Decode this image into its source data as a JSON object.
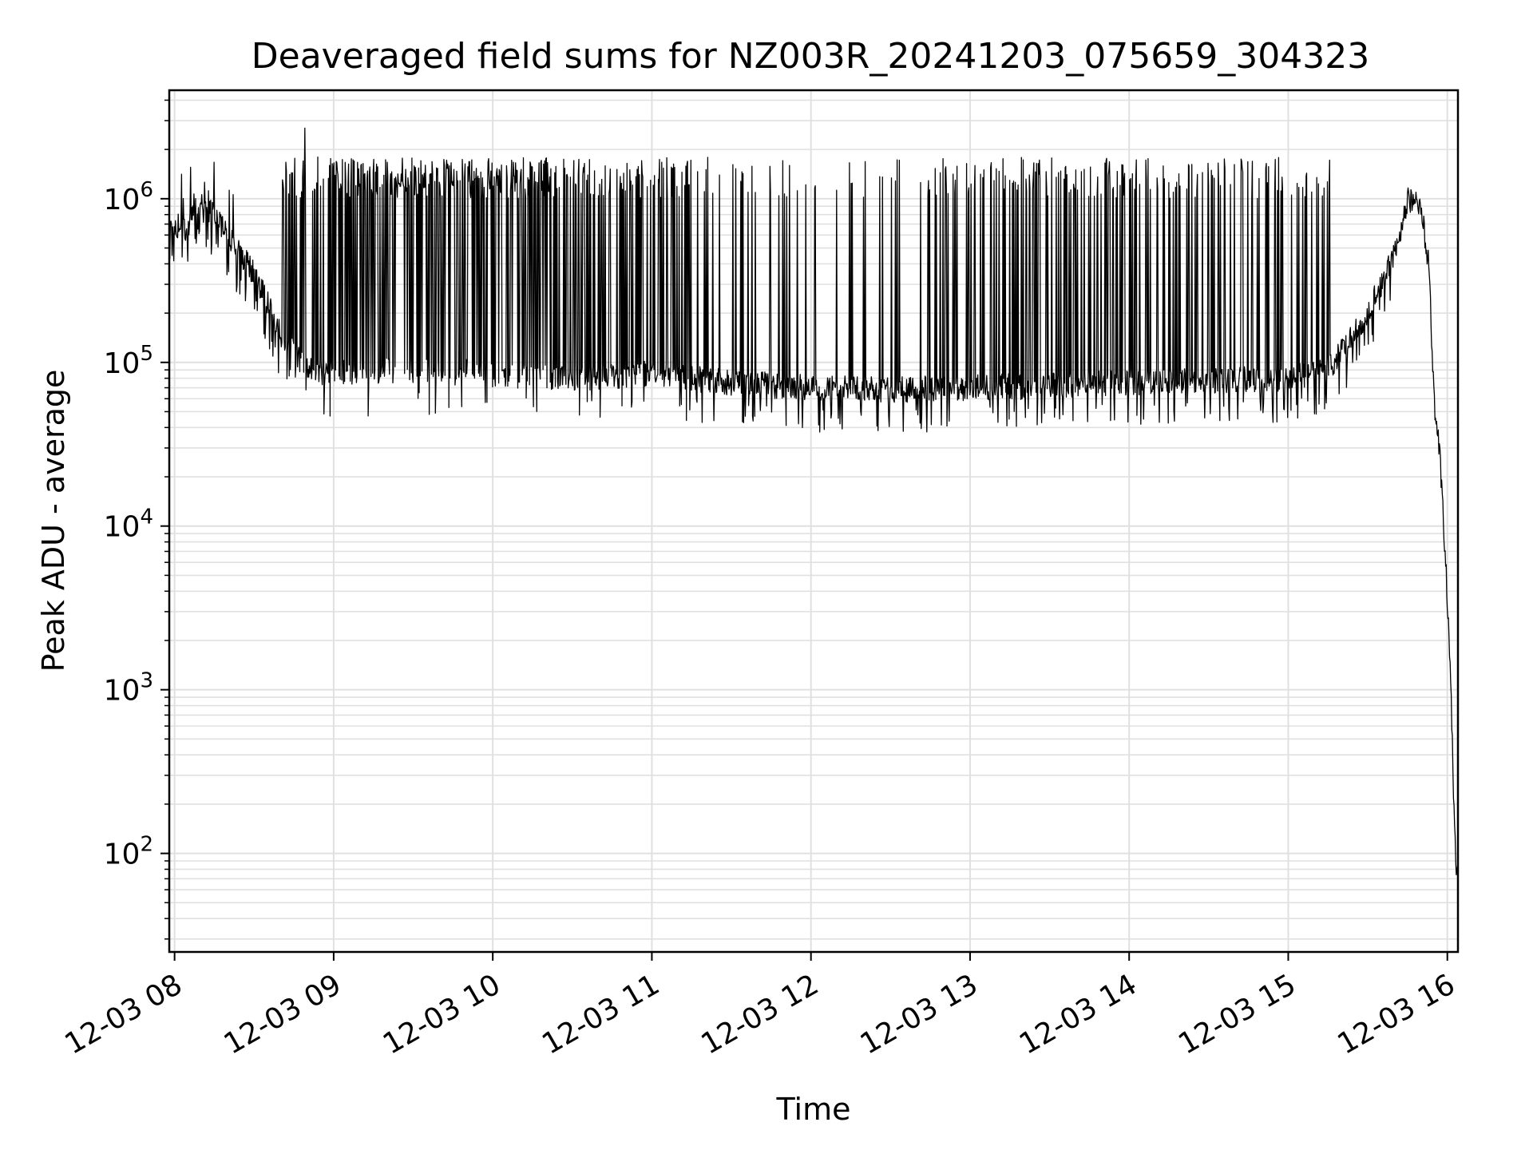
{
  "chart_data": {
    "type": "line",
    "title": "Deaveraged field sums for NZ003R_20241203_075659_304323",
    "xlabel": "Time",
    "ylabel": "Peak ADU - average",
    "x_scale": "time",
    "y_scale": "log",
    "xlim": [
      "2024-12-03 07:58",
      "2024-12-03 16:04"
    ],
    "ylim": [
      25,
      4600000
    ],
    "x_ticks": [
      "2024-12-03 08:00",
      "2024-12-03 09:00",
      "2024-12-03 10:00",
      "2024-12-03 11:00",
      "2024-12-03 12:00",
      "2024-12-03 13:00",
      "2024-12-03 14:00",
      "2024-12-03 15:00",
      "2024-12-03 16:00"
    ],
    "x_tick_labels": [
      "12-03 08",
      "12-03 09",
      "12-03 10",
      "12-03 11",
      "12-03 12",
      "12-03 13",
      "12-03 14",
      "12-03 15",
      "12-03 16"
    ],
    "y_ticks": [
      100,
      1000,
      10000,
      100000,
      1000000
    ],
    "y_tick_labels": [
      {
        "base": "10",
        "exp": "2"
      },
      {
        "base": "10",
        "exp": "3"
      },
      {
        "base": "10",
        "exp": "4"
      },
      {
        "base": "10",
        "exp": "5"
      },
      {
        "base": "10",
        "exp": "6"
      }
    ],
    "grid": true,
    "line_color": "#000000",
    "grid_color": "#e0e0e0",
    "series": [
      {
        "x": [
          "2024-12-03 07:58",
          "2024-12-03 08:00",
          "2024-12-03 08:05",
          "2024-12-03 08:10",
          "2024-12-03 08:20",
          "2024-12-03 08:30",
          "2024-12-03 08:40",
          "2024-12-03 08:50",
          "2024-12-03 09:00",
          "2024-12-03 09:30",
          "2024-12-03 10:00",
          "2024-12-03 10:30",
          "2024-12-03 11:00",
          "2024-12-03 11:30",
          "2024-12-03 12:00",
          "2024-12-03 12:30",
          "2024-12-03 13:00",
          "2024-12-03 13:30",
          "2024-12-03 14:00",
          "2024-12-03 14:30",
          "2024-12-03 15:00",
          "2024-12-03 15:15",
          "2024-12-03 15:30",
          "2024-12-03 15:40",
          "2024-12-03 15:45",
          "2024-12-03 15:50",
          "2024-12-03 15:53",
          "2024-12-03 15:55",
          "2024-12-03 15:57",
          "2024-12-03 15:59",
          "2024-12-03 16:01",
          "2024-12-03 16:03",
          "2024-12-03 16:04"
        ],
        "y": [
          650000,
          700000,
          650000,
          1000000,
          600000,
          350000,
          150000,
          90000,
          85000,
          90000,
          85000,
          80000,
          85000,
          75000,
          70000,
          68000,
          70000,
          72000,
          75000,
          78000,
          80000,
          90000,
          200000,
          450000,
          1000000,
          900000,
          400000,
          60000,
          30000,
          8000,
          1500,
          100,
          70
        ],
        "spike_peak_range": [
          1000000,
          1800000
        ],
        "max_peak": 2700000
      }
    ]
  }
}
